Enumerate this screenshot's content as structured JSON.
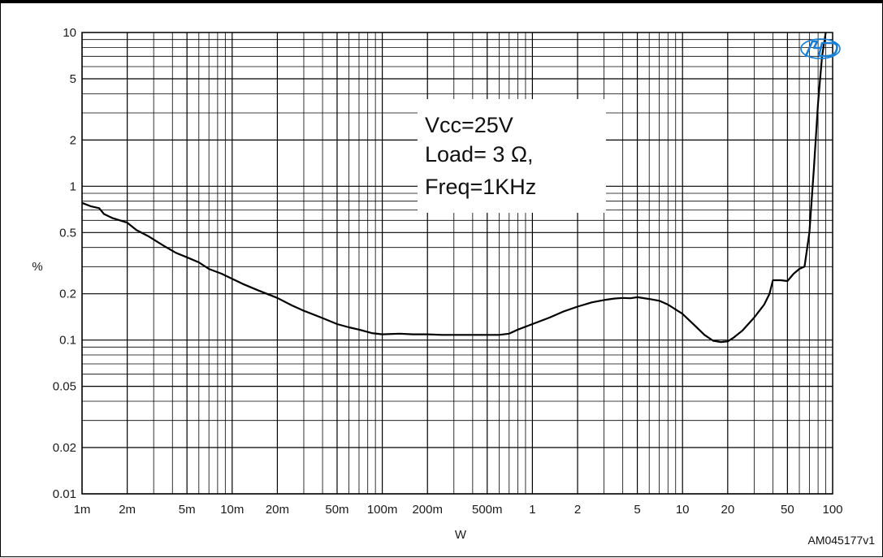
{
  "chart_data": {
    "type": "line",
    "xlabel": "W",
    "ylabel": "%",
    "x_scale": "log",
    "y_scale": "log",
    "xlim": [
      0.001,
      100
    ],
    "ylim": [
      0.01,
      10
    ],
    "grid": true,
    "x_ticks": [
      {
        "value": 0.001,
        "label": "1m"
      },
      {
        "value": 0.002,
        "label": "2m"
      },
      {
        "value": 0.005,
        "label": "5m"
      },
      {
        "value": 0.01,
        "label": "10m"
      },
      {
        "value": 0.02,
        "label": "20m"
      },
      {
        "value": 0.05,
        "label": "50m"
      },
      {
        "value": 0.1,
        "label": "100m"
      },
      {
        "value": 0.2,
        "label": "200m"
      },
      {
        "value": 0.5,
        "label": "500m"
      },
      {
        "value": 1,
        "label": "1"
      },
      {
        "value": 2,
        "label": "2"
      },
      {
        "value": 5,
        "label": "5"
      },
      {
        "value": 10,
        "label": "10"
      },
      {
        "value": 20,
        "label": "20"
      },
      {
        "value": 50,
        "label": "50"
      },
      {
        "value": 100,
        "label": "100"
      }
    ],
    "y_ticks": [
      {
        "value": 0.01,
        "label": "0.01"
      },
      {
        "value": 0.02,
        "label": "0.02"
      },
      {
        "value": 0.05,
        "label": "0.05"
      },
      {
        "value": 0.1,
        "label": "0.1"
      },
      {
        "value": 0.2,
        "label": "0.2"
      },
      {
        "value": 0.5,
        "label": "0.5"
      },
      {
        "value": 1,
        "label": "1"
      },
      {
        "value": 2,
        "label": "2"
      },
      {
        "value": 5,
        "label": "5"
      },
      {
        "value": 10,
        "label": "10"
      }
    ],
    "annotation": [
      "Vcc=25V",
      "Load= 3 Ω,",
      "Freq=1KHz"
    ],
    "figure_code": "AM045177v1",
    "series": [
      {
        "color": "#000000",
        "points": [
          [
            0.001,
            0.78
          ],
          [
            0.00115,
            0.74
          ],
          [
            0.0013,
            0.72
          ],
          [
            0.0014,
            0.66
          ],
          [
            0.0016,
            0.62
          ],
          [
            0.002,
            0.58
          ],
          [
            0.0023,
            0.52
          ],
          [
            0.0028,
            0.47
          ],
          [
            0.0035,
            0.41
          ],
          [
            0.0042,
            0.37
          ],
          [
            0.005,
            0.345
          ],
          [
            0.006,
            0.32
          ],
          [
            0.007,
            0.29
          ],
          [
            0.0085,
            0.27
          ],
          [
            0.01,
            0.25
          ],
          [
            0.012,
            0.23
          ],
          [
            0.015,
            0.21
          ],
          [
            0.02,
            0.188
          ],
          [
            0.025,
            0.168
          ],
          [
            0.03,
            0.155
          ],
          [
            0.04,
            0.139
          ],
          [
            0.05,
            0.127
          ],
          [
            0.06,
            0.121
          ],
          [
            0.07,
            0.117
          ],
          [
            0.085,
            0.111
          ],
          [
            0.1,
            0.109
          ],
          [
            0.13,
            0.11
          ],
          [
            0.16,
            0.109
          ],
          [
            0.2,
            0.109
          ],
          [
            0.25,
            0.108
          ],
          [
            0.3,
            0.108
          ],
          [
            0.4,
            0.108
          ],
          [
            0.5,
            0.108
          ],
          [
            0.6,
            0.108
          ],
          [
            0.7,
            0.11
          ],
          [
            0.8,
            0.117
          ],
          [
            1,
            0.127
          ],
          [
            1.3,
            0.14
          ],
          [
            1.6,
            0.153
          ],
          [
            2,
            0.165
          ],
          [
            2.5,
            0.176
          ],
          [
            3,
            0.182
          ],
          [
            3.5,
            0.186
          ],
          [
            4,
            0.188
          ],
          [
            4.5,
            0.187
          ],
          [
            5,
            0.19
          ],
          [
            6,
            0.185
          ],
          [
            7,
            0.18
          ],
          [
            8,
            0.17
          ],
          [
            10,
            0.148
          ],
          [
            12,
            0.125
          ],
          [
            14,
            0.108
          ],
          [
            16,
            0.099
          ],
          [
            18,
            0.097
          ],
          [
            20,
            0.098
          ],
          [
            22,
            0.104
          ],
          [
            25,
            0.115
          ],
          [
            30,
            0.14
          ],
          [
            35,
            0.17
          ],
          [
            38,
            0.2
          ],
          [
            40,
            0.245
          ],
          [
            45,
            0.245
          ],
          [
            50,
            0.242
          ],
          [
            55,
            0.27
          ],
          [
            60,
            0.29
          ],
          [
            65,
            0.3
          ],
          [
            70,
            0.5
          ],
          [
            75,
            1.3
          ],
          [
            80,
            3.5
          ],
          [
            85,
            7
          ],
          [
            90,
            10
          ]
        ]
      }
    ]
  }
}
